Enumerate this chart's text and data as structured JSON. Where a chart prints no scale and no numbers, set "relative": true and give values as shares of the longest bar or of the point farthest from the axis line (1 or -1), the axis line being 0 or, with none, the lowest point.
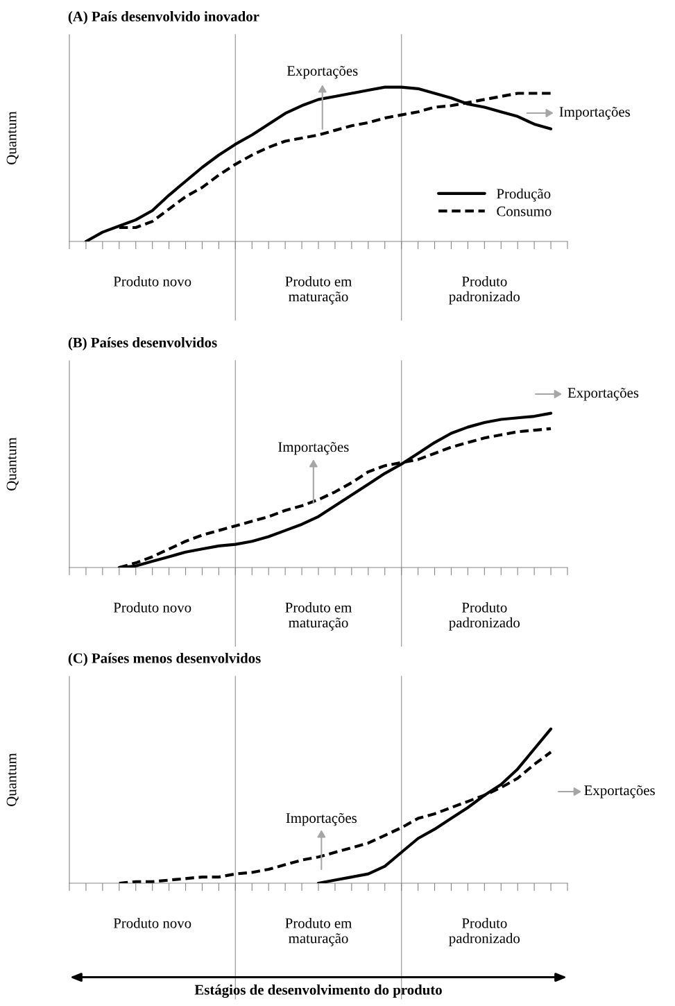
{
  "chart_data": [
    {
      "type": "line",
      "title": "(A) País desenvolvido inovador",
      "ylabel": "Quantum",
      "relative": true,
      "categories": [
        null,
        null,
        null,
        null,
        null,
        "Produto novo",
        null,
        null,
        null,
        null,
        null,
        null,
        null,
        null,
        null,
        "Produto em\nmaturação",
        null,
        null,
        null,
        null,
        null,
        null,
        null,
        null,
        null,
        "Produto\npadronizado",
        null,
        null,
        null,
        null,
        null
      ],
      "series": [
        {
          "name": "Produção",
          "color": "#000000",
          "line_style": "solid",
          "values": [
            null,
            0,
            0.06,
            0.1,
            0.14,
            0.2,
            0.3,
            0.39,
            0.48,
            0.56,
            0.63,
            0.69,
            0.76,
            0.83,
            0.88,
            0.92,
            0.94,
            0.96,
            0.98,
            1.0,
            1.0,
            0.99,
            0.96,
            0.93,
            0.89,
            0.87,
            0.84,
            0.81,
            0.76,
            0.73,
            null
          ]
        },
        {
          "name": "Consumo",
          "color": "#000000",
          "line_style": "dashed",
          "values": [
            null,
            null,
            null,
            0.09,
            0.09,
            0.13,
            0.21,
            0.29,
            0.35,
            0.43,
            0.5,
            0.56,
            0.61,
            0.65,
            0.67,
            0.69,
            0.72,
            0.75,
            0.77,
            0.8,
            0.82,
            0.84,
            0.87,
            0.88,
            0.9,
            0.92,
            0.94,
            0.96,
            0.96,
            0.96,
            null
          ]
        }
      ],
      "annotations": [
        "Exportações",
        "Importações"
      ],
      "legend": "bottom right"
    },
    {
      "type": "line",
      "title": "(B) Países desenvolvidos",
      "ylabel": "Quantum",
      "relative": true,
      "categories": [
        null,
        null,
        null,
        null,
        null,
        "Produto novo",
        null,
        null,
        null,
        null,
        null,
        null,
        null,
        null,
        null,
        "Produto em\nmaturação",
        null,
        null,
        null,
        null,
        null,
        null,
        null,
        null,
        null,
        "Produto\npadronizado",
        null,
        null,
        null,
        null,
        null
      ],
      "series": [
        {
          "color": "#000000",
          "line_style": "solid",
          "values": [
            null,
            null,
            null,
            0,
            0.01,
            0.04,
            0.07,
            0.1,
            0.12,
            0.14,
            0.15,
            0.17,
            0.2,
            0.24,
            0.28,
            0.33,
            0.4,
            0.47,
            0.54,
            0.61,
            0.67,
            0.74,
            0.81,
            0.87,
            0.91,
            0.94,
            0.96,
            0.97,
            0.98,
            1.0,
            null
          ]
        },
        {
          "color": "#000000",
          "line_style": "dashed",
          "values": [
            null,
            null,
            null,
            0,
            0.03,
            0.07,
            0.12,
            0.17,
            0.21,
            0.24,
            0.27,
            0.3,
            0.33,
            0.37,
            0.4,
            0.44,
            0.49,
            0.55,
            0.62,
            0.66,
            0.68,
            0.7,
            0.74,
            0.78,
            0.81,
            0.84,
            0.86,
            0.88,
            0.89,
            0.9,
            null
          ]
        }
      ],
      "annotations": [
        "Importações",
        "Exportações"
      ]
    },
    {
      "type": "line",
      "title": "(C) Países menos desenvolvidos",
      "ylabel": "Quantum",
      "xlabel": "Estágios de desenvolvimento do produto",
      "relative": true,
      "categories": [
        null,
        null,
        null,
        null,
        null,
        "Produto novo",
        null,
        null,
        null,
        null,
        null,
        null,
        null,
        null,
        null,
        "Produto em\nmaturação",
        null,
        null,
        null,
        null,
        null,
        null,
        null,
        null,
        null,
        "Produto\npadronizado",
        null,
        null,
        null,
        null,
        null
      ],
      "series": [
        {
          "color": "#000000",
          "line_style": "solid",
          "values": [
            null,
            null,
            null,
            null,
            null,
            null,
            null,
            null,
            null,
            null,
            null,
            null,
            null,
            null,
            null,
            0,
            0.02,
            0.04,
            0.06,
            0.11,
            0.2,
            0.29,
            0.35,
            0.42,
            0.49,
            0.57,
            0.64,
            0.74,
            0.87,
            1.0,
            null
          ]
        },
        {
          "color": "#000000",
          "line_style": "dashed",
          "values": [
            null,
            null,
            null,
            0,
            0.01,
            0.01,
            0.02,
            0.03,
            0.04,
            0.04,
            0.06,
            0.07,
            0.09,
            0.12,
            0.15,
            0.17,
            0.2,
            0.23,
            0.26,
            0.31,
            0.36,
            0.42,
            0.45,
            0.49,
            0.53,
            0.57,
            0.62,
            0.68,
            0.77,
            0.85,
            null
          ]
        }
      ],
      "annotations": [
        "Importações",
        "Exportações"
      ]
    }
  ]
}
